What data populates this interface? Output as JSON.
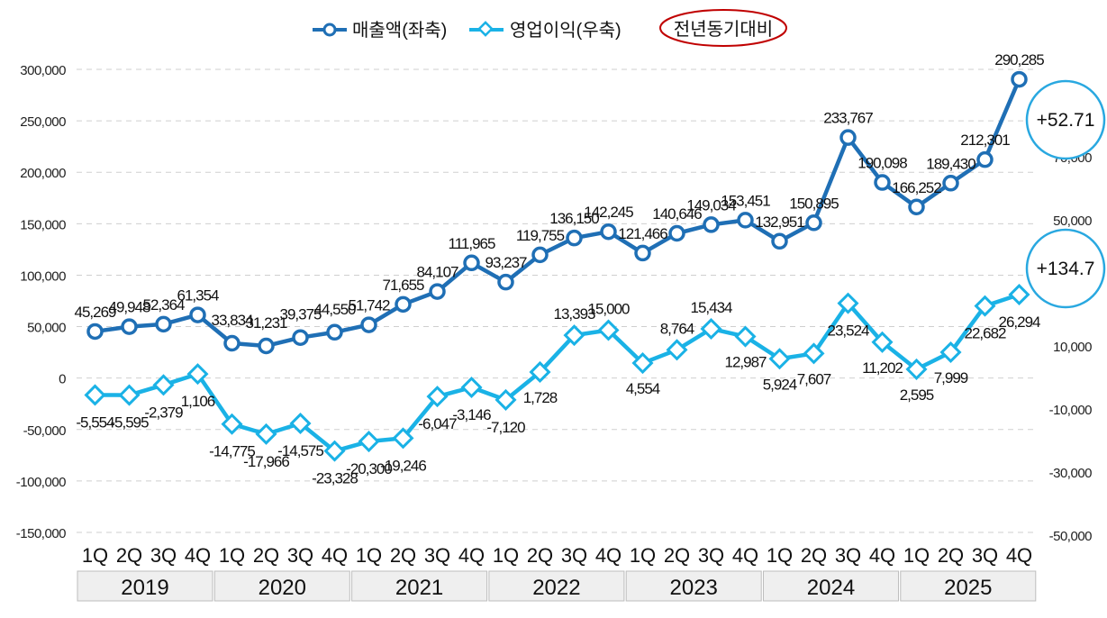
{
  "chart_data": {
    "type": "line",
    "legend": {
      "position": "top-center",
      "entries": [
        "매출액(좌축)",
        "영업이익(우축)"
      ],
      "note": "전년동기대비"
    },
    "quarters": [
      "1Q",
      "2Q",
      "3Q",
      "4Q",
      "1Q",
      "2Q",
      "3Q",
      "4Q",
      "1Q",
      "2Q",
      "3Q",
      "4Q",
      "1Q",
      "2Q",
      "3Q",
      "4Q",
      "1Q",
      "2Q",
      "3Q",
      "4Q",
      "1Q",
      "2Q",
      "3Q",
      "4Q",
      "1Q",
      "2Q",
      "3Q",
      "4Q"
    ],
    "years": [
      "2019",
      "2020",
      "2021",
      "2022",
      "2023",
      "2024",
      "2025"
    ],
    "left_axis": {
      "ylim": [
        -150000,
        300000
      ],
      "ticks": [
        "300,000",
        "250,000",
        "200,000",
        "150,000",
        "100,000",
        "50,000",
        "0",
        "-50,000",
        "-100,000",
        "-150,000"
      ]
    },
    "right_axis": {
      "visible_ticks": [
        "70,000",
        "50,000",
        "10,000",
        "-10,000",
        "-30,000",
        "-50,000"
      ]
    },
    "series": [
      {
        "name": "매출액(좌축)",
        "axis": "left",
        "color": "#1f6fb5",
        "values": [
          45269,
          49948,
          52364,
          61354,
          33834,
          31231,
          39375,
          44550,
          51742,
          71655,
          84107,
          111965,
          93237,
          119755,
          136150,
          142245,
          121466,
          140646,
          149034,
          153451,
          132951,
          150895,
          233767,
          190098,
          166252,
          189430,
          212301,
          290285
        ],
        "labels": [
          "45,269",
          "49,948",
          "52,364",
          "61,354",
          "33,834",
          "31,231",
          "39,375",
          "44,550",
          "51,742",
          "71,655",
          "84,107",
          "111,965",
          "93,237",
          "119,755",
          "136,150",
          "142,245",
          "121,466",
          "140,646",
          "149,034",
          "153,451",
          "132,951",
          "150,895",
          "233,767",
          "190,098",
          "166,252",
          "189,430",
          "212,301",
          "290,285"
        ]
      },
      {
        "name": "영업이익(우축)",
        "axis": "right",
        "color": "#1ab2e6",
        "values": [
          -5554,
          -5595,
          -2379,
          1106,
          -14775,
          -17966,
          -14575,
          -23328,
          -20300,
          -19246,
          -6047,
          -3146,
          -7120,
          1728,
          13393,
          15000,
          4554,
          8764,
          15434,
          12987,
          5924,
          7607,
          23524,
          11202,
          2595,
          7999,
          22682,
          26294
        ],
        "labels": [
          "-5,554",
          "-5,595",
          "-2,379",
          "1,106",
          "-14,775",
          "-17,966",
          "-14,575",
          "-23,328",
          "-20,300",
          "-19,246",
          "-6,047",
          "-3,146",
          "-7,120",
          "1,728",
          "13,393",
          "15,000",
          "4,554",
          "8,764",
          "15,434",
          "12,987",
          "5,924",
          "7,607",
          "23,524",
          "11,202",
          "2,595",
          "7,999",
          "22,682",
          "26,294"
        ]
      }
    ],
    "annotations": [
      "+52.71",
      "+134.7"
    ],
    "grid": true
  }
}
